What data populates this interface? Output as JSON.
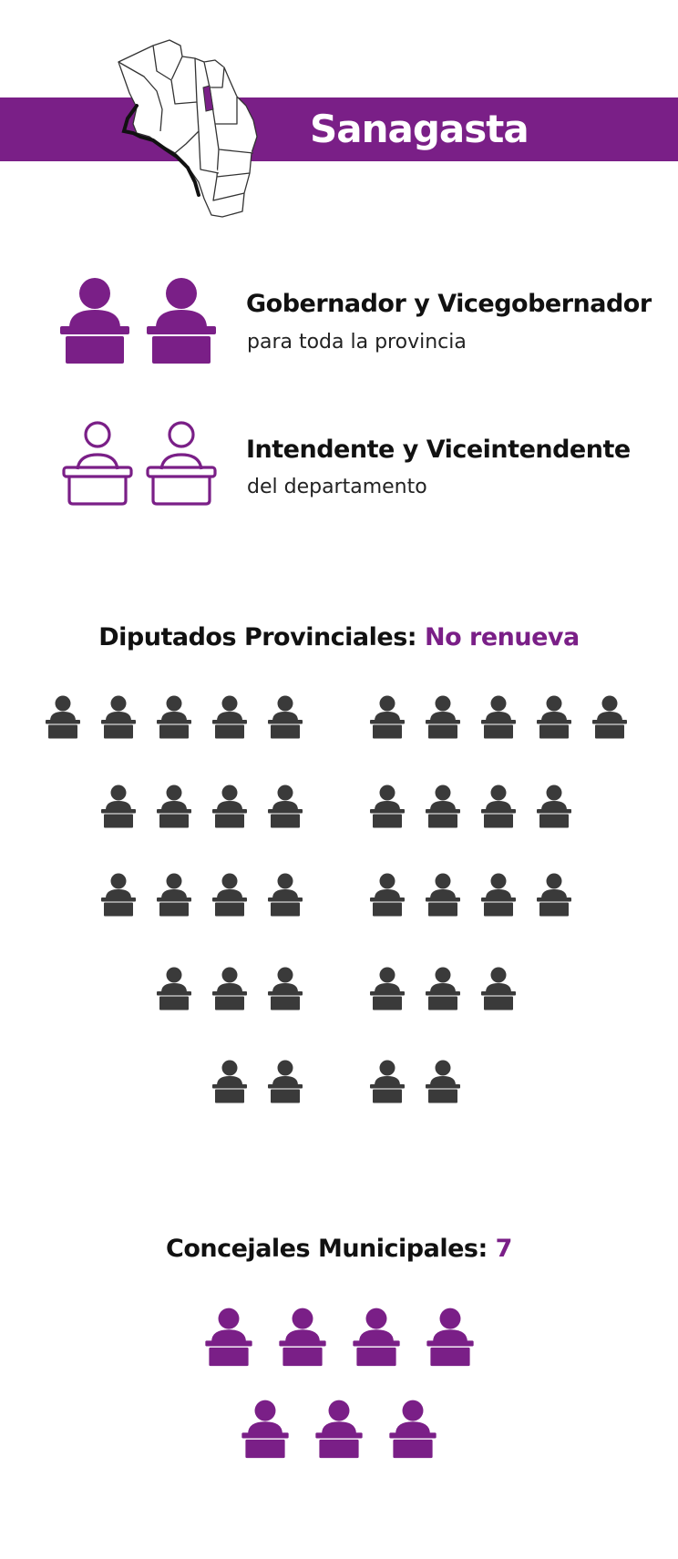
{
  "header": {
    "department": "Sanagasta",
    "map_icon": "province-map-icon",
    "accent_color": "#7a1f87"
  },
  "roles": [
    {
      "title": "Gobernador y Vicegobernador",
      "subtitle": "para toda la provincia",
      "style": "filled",
      "count": 2
    },
    {
      "title": "Intendente y Viceintendente",
      "subtitle": "del departamento",
      "style": "outline",
      "count": 2
    }
  ],
  "diputados": {
    "label": "Diputados Provinciales:",
    "status": "No renueva",
    "seat_icon": "legislator-seat-icon",
    "seat_color": "#3a3a3a",
    "rows_left": [
      5,
      4,
      4,
      3,
      2
    ],
    "rows_right": [
      5,
      4,
      4,
      3,
      2
    ]
  },
  "concejales": {
    "label": "Concejales Municipales:",
    "count": "7",
    "seat_icon": "councilor-seat-icon",
    "seat_color": "#7a1f87",
    "rows": [
      4,
      3
    ]
  }
}
